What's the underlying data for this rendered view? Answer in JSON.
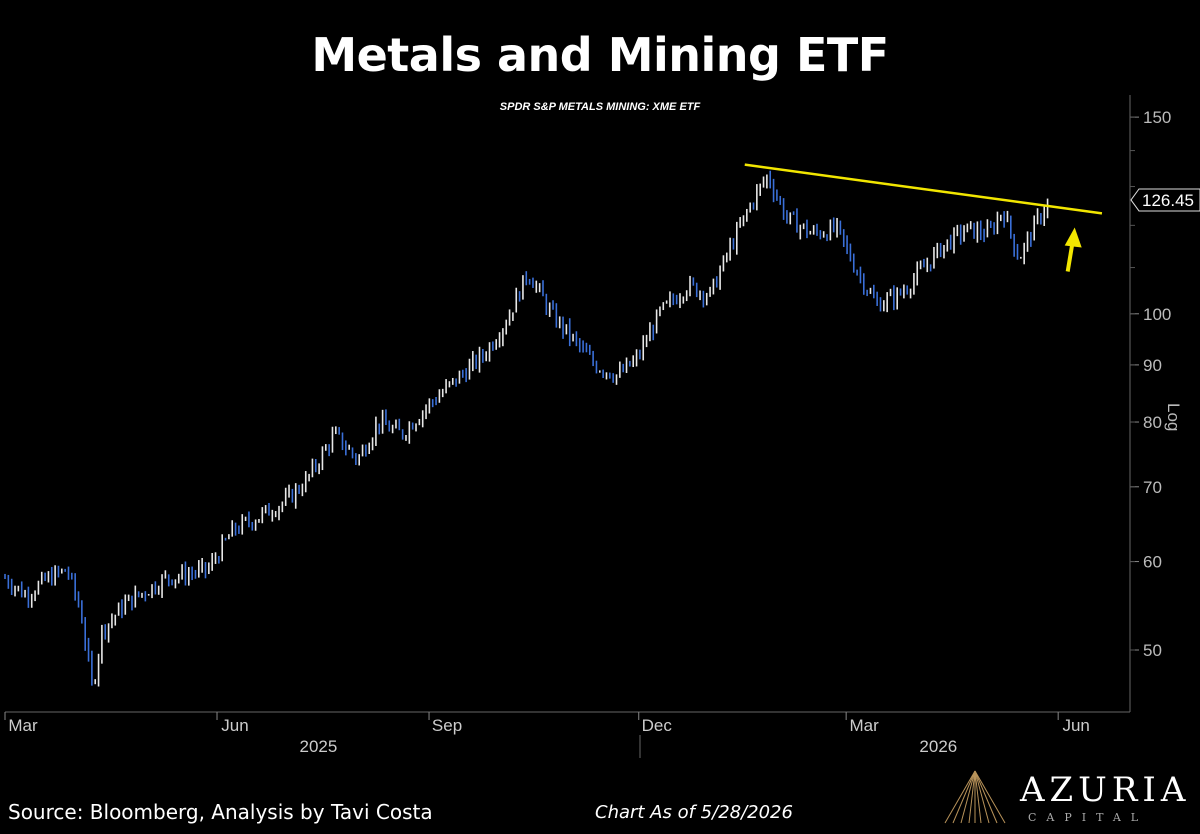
{
  "title": "Metals and Mining ETF",
  "subtitle": "SPDR S&P METALS MINING: XME ETF",
  "footer": {
    "source": "Source: Bloomberg, Analysis by Tavi Costa",
    "as_of": "Chart As of 5/28/2026",
    "brand": "AZURIA",
    "brand_sub": "CAPITAL"
  },
  "colors": {
    "background": "#000000",
    "up_bar": "#e8e8e8",
    "down_bar": "#3a6fd8",
    "trendline": "#f2e600",
    "arrow": "#f2e600"
  },
  "chart_data": {
    "type": "line",
    "title": "Metals and Mining ETF",
    "subtitle": "SPDR S&P METALS MINING: XME ETF",
    "y_scale": "log",
    "y_axis_label": "Log",
    "ylim": [
      44,
      157
    ],
    "y_ticks": [
      150,
      100,
      90,
      80,
      70,
      60,
      50
    ],
    "last_price_label": "126.45",
    "x_tick_labels": [
      "Mar",
      "Jun",
      "Sep",
      "Dec",
      "Mar",
      "Jun"
    ],
    "x_year_labels": [
      "2025",
      "2026"
    ],
    "x_range": [
      "2025-03-01",
      "2026-06-30"
    ],
    "series": [
      {
        "values": [
          {
            "x": "2025-03-01",
            "y": 58
          },
          {
            "x": "2025-03-10",
            "y": 56
          },
          {
            "x": "2025-03-20",
            "y": 58
          },
          {
            "x": "2025-03-28",
            "y": 59
          },
          {
            "x": "2025-04-03",
            "y": 54
          },
          {
            "x": "2025-04-08",
            "y": 46
          },
          {
            "x": "2025-04-12",
            "y": 52
          },
          {
            "x": "2025-04-22",
            "y": 55
          },
          {
            "x": "2025-05-10",
            "y": 58
          },
          {
            "x": "2025-05-28",
            "y": 59
          },
          {
            "x": "2025-06-08",
            "y": 64
          },
          {
            "x": "2025-06-20",
            "y": 66
          },
          {
            "x": "2025-07-01",
            "y": 68
          },
          {
            "x": "2025-07-10",
            "y": 71
          },
          {
            "x": "2025-07-22",
            "y": 78
          },
          {
            "x": "2025-08-01",
            "y": 74
          },
          {
            "x": "2025-08-10",
            "y": 80
          },
          {
            "x": "2025-08-20",
            "y": 78
          },
          {
            "x": "2025-09-01",
            "y": 83
          },
          {
            "x": "2025-09-12",
            "y": 87
          },
          {
            "x": "2025-09-25",
            "y": 92
          },
          {
            "x": "2025-10-05",
            "y": 99
          },
          {
            "x": "2025-10-14",
            "y": 109
          },
          {
            "x": "2025-10-24",
            "y": 100
          },
          {
            "x": "2025-11-04",
            "y": 94
          },
          {
            "x": "2025-11-12",
            "y": 90
          },
          {
            "x": "2025-11-22",
            "y": 88
          },
          {
            "x": "2025-11-30",
            "y": 91
          },
          {
            "x": "2025-12-10",
            "y": 100
          },
          {
            "x": "2025-12-22",
            "y": 106
          },
          {
            "x": "2026-01-01",
            "y": 104
          },
          {
            "x": "2026-01-10",
            "y": 115
          },
          {
            "x": "2026-01-20",
            "y": 127
          },
          {
            "x": "2026-01-26",
            "y": 133
          },
          {
            "x": "2026-02-03",
            "y": 122
          },
          {
            "x": "2026-02-14",
            "y": 118
          },
          {
            "x": "2026-02-25",
            "y": 119
          },
          {
            "x": "2026-03-05",
            "y": 110
          },
          {
            "x": "2026-03-14",
            "y": 102
          },
          {
            "x": "2026-03-24",
            "y": 104
          },
          {
            "x": "2026-04-02",
            "y": 109
          },
          {
            "x": "2026-04-12",
            "y": 115
          },
          {
            "x": "2026-04-22",
            "y": 119
          },
          {
            "x": "2026-05-02",
            "y": 118
          },
          {
            "x": "2026-05-08",
            "y": 124
          },
          {
            "x": "2026-05-15",
            "y": 112
          },
          {
            "x": "2026-05-21",
            "y": 119
          },
          {
            "x": "2026-05-28",
            "y": 126.45
          }
        ]
      }
    ],
    "annotations": [
      {
        "type": "trendline",
        "from": {
          "x": "2026-01-16",
          "y": 136
        },
        "to": {
          "x": "2026-06-20",
          "y": 123
        }
      },
      {
        "type": "arrow-up",
        "at": {
          "x": "2026-06-06",
          "y": 118
        }
      }
    ],
    "grid": false,
    "legend": "none"
  }
}
